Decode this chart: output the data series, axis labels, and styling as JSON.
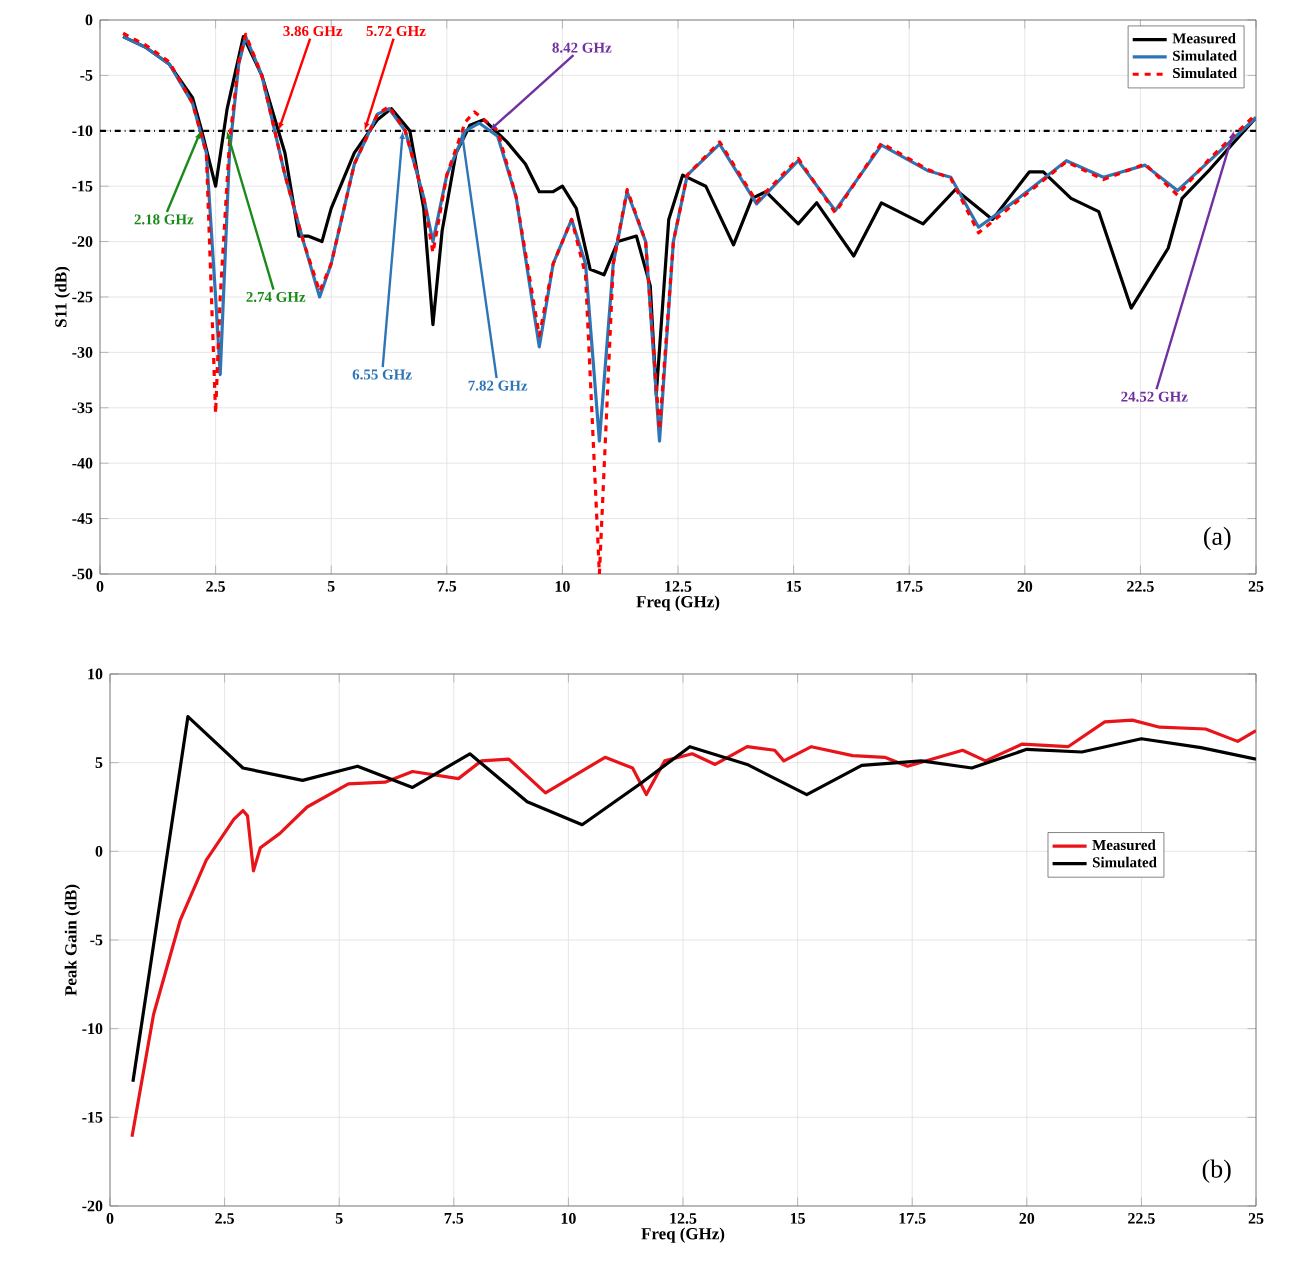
{
  "chart_data": [
    {
      "type": "line",
      "xlabel": "Freq (GHz)",
      "ylabel": "S11 (dB)",
      "xlim": [
        0,
        25
      ],
      "ylim": [
        -50,
        0
      ],
      "xticks": [
        0,
        2.5,
        5,
        7.5,
        10,
        12.5,
        15,
        17.5,
        20,
        22.5,
        25
      ],
      "yticks": [
        -50,
        -45,
        -40,
        -35,
        -30,
        -25,
        -20,
        -15,
        -10,
        -5,
        0
      ],
      "grid": true,
      "legend": "top right",
      "ref_lines": [
        {
          "axis": "y",
          "value": -10,
          "color": "#000000",
          "line_style": "dashdot"
        }
      ],
      "series": [
        {
          "name": "Measured",
          "color": "#000000",
          "line_style": "solid",
          "x": [
            0.5,
            1,
            1.5,
            2,
            2.2,
            2.5,
            2.75,
            3.1,
            3.5,
            4,
            4.3,
            4.5,
            4.8,
            5,
            5.5,
            6,
            6.3,
            6.7,
            7,
            7.2,
            7.4,
            7.7,
            8,
            8.3,
            8.8,
            9.2,
            9.5,
            9.8,
            10,
            10.3,
            10.6,
            10.9,
            11.2,
            11.6,
            11.9,
            12.03,
            12.3,
            12.6,
            13.1,
            13.7,
            14.1,
            14.4,
            15.1,
            15.5,
            16.3,
            16.9,
            17.8,
            18.5,
            19.3,
            20.1,
            20.4,
            21,
            21.6,
            22.3,
            23.1,
            23.4,
            24,
            25
          ],
          "values": [
            -1.5,
            -2.5,
            -4,
            -7,
            -10,
            -15,
            -8,
            -1.5,
            -5,
            -12,
            -19.5,
            -19.5,
            -20,
            -17,
            -12,
            -9,
            -8,
            -10,
            -17,
            -27.5,
            -19,
            -12,
            -9.5,
            -9,
            -11,
            -13,
            -15.5,
            -15.5,
            -15,
            -17,
            -22.5,
            -23,
            -20,
            -19.5,
            -24,
            -33.8,
            -18,
            -14,
            -15,
            -20.3,
            -16.1,
            -15.5,
            -18.4,
            -16.5,
            -21.3,
            -16.5,
            -18.4,
            -15.3,
            -18,
            -13.7,
            -13.7,
            -16.1,
            -17.3,
            -26,
            -20.6,
            -16.1,
            -13.5,
            -8.8
          ]
        },
        {
          "name": "Simulated",
          "color": "#2e75b6",
          "line_style": "solid",
          "x": [
            0.5,
            1,
            1.5,
            2,
            2.3,
            2.5,
            2.6,
            2.8,
            3,
            3.15,
            3.5,
            4,
            4.4,
            4.75,
            5,
            5.5,
            6,
            6.25,
            6.6,
            7,
            7.2,
            7.5,
            7.9,
            8.2,
            8.6,
            9,
            9.5,
            9.8,
            10.2,
            10.5,
            10.8,
            11.1,
            11.4,
            11.8,
            12.1,
            12.4,
            12.7,
            13.4,
            14.2,
            15.1,
            15.9,
            16.9,
            17.9,
            18.4,
            19,
            19.8,
            20.9,
            21.7,
            22.6,
            23.3,
            24,
            25
          ],
          "values": [
            -1.5,
            -2.5,
            -4,
            -7.5,
            -12,
            -25,
            -32,
            -12,
            -4,
            -1.5,
            -5,
            -14,
            -20,
            -25,
            -22,
            -13,
            -8.5,
            -8,
            -10,
            -16,
            -20,
            -14,
            -10,
            -9.3,
            -10.5,
            -16,
            -29.5,
            -22,
            -18,
            -22,
            -38,
            -22,
            -15.5,
            -20,
            -38,
            -20,
            -14,
            -11.2,
            -16.6,
            -12.7,
            -17.2,
            -11.3,
            -13.6,
            -14.2,
            -18.7,
            -16.3,
            -12.7,
            -14.2,
            -13.1,
            -15.4,
            -12.7,
            -8.8
          ]
        },
        {
          "name": "Simulated",
          "color": "#ff0000",
          "line_style": "dashed",
          "x": [
            0.5,
            1,
            1.5,
            2,
            2.3,
            2.5,
            2.6,
            2.8,
            3,
            3.15,
            3.5,
            4,
            4.4,
            4.75,
            5,
            5.5,
            6,
            6.25,
            6.6,
            7,
            7.2,
            7.5,
            7.9,
            8.1,
            8.6,
            9,
            9.5,
            9.8,
            10.2,
            10.5,
            10.8,
            11.1,
            11.4,
            11.8,
            12.1,
            12.4,
            12.7,
            13.4,
            14.2,
            15.1,
            15.9,
            16.9,
            17.9,
            18.4,
            19,
            19.8,
            20.9,
            21.7,
            22.6,
            23.3,
            24,
            25
          ],
          "values": [
            -1.2,
            -2.3,
            -3.8,
            -7.5,
            -12,
            -35.5,
            -25,
            -11,
            -3.8,
            -1.3,
            -5,
            -14,
            -20,
            -24.5,
            -22,
            -13,
            -8.5,
            -7.8,
            -10,
            -16,
            -21,
            -14,
            -9.2,
            -8.3,
            -10,
            -16,
            -28.5,
            -22,
            -18,
            -23,
            -50,
            -22,
            -15.3,
            -20,
            -37,
            -20,
            -14,
            -11,
            -16.4,
            -12.5,
            -17.4,
            -11.1,
            -13.5,
            -14.3,
            -19.2,
            -16.5,
            -12.8,
            -14.4,
            -13,
            -15.8,
            -12.5,
            -8.5
          ]
        }
      ],
      "annotations": [
        {
          "text": "2.18 GHz",
          "x": 2.18,
          "y": -10
        },
        {
          "text": "2.74 GHz",
          "x": 2.74,
          "y": -10
        },
        {
          "text": "3.86 GHz",
          "x": 3.86,
          "y": -10
        },
        {
          "text": "5.72 GHz",
          "x": 5.72,
          "y": -10
        },
        {
          "text": "6.55 GHz",
          "x": 6.55,
          "y": -10
        },
        {
          "text": "7.82 GHz",
          "x": 7.82,
          "y": -10
        },
        {
          "text": "8.42 GHz",
          "x": 8.42,
          "y": -10
        },
        {
          "text": "24.52 GHz",
          "x": 24.52,
          "y": -10
        },
        "(a)"
      ]
    },
    {
      "type": "line",
      "xlabel": "Freq (GHz)",
      "ylabel": "Peak Gain (dB)",
      "xlim": [
        0,
        25
      ],
      "ylim": [
        -20,
        10
      ],
      "xticks": [
        0,
        2.5,
        5,
        7.5,
        10,
        12.5,
        15,
        17.5,
        20,
        22.5,
        25
      ],
      "yticks": [
        -20,
        -15,
        -10,
        -5,
        0,
        5,
        10
      ],
      "grid": true,
      "legend": "right",
      "series": [
        {
          "name": "Measured",
          "color": "#e8141a",
          "line_style": "solid",
          "x": [
            0.48,
            0.95,
            1.53,
            2.1,
            2.7,
            2.9,
            3.0,
            3.13,
            3.28,
            3.7,
            4.3,
            5.2,
            6.0,
            6.6,
            7.6,
            8.1,
            8.7,
            9.5,
            10.8,
            11.4,
            11.7,
            12.1,
            12.7,
            13.2,
            13.9,
            14.5,
            14.7,
            15.3,
            16.2,
            16.9,
            17.4,
            18.6,
            19.1,
            19.9,
            20.9,
            21.7,
            22.3,
            22.9,
            23.9,
            24.6,
            25
          ],
          "values": [
            -16.1,
            -9.2,
            -3.9,
            -0.5,
            1.8,
            2.3,
            2.0,
            -1.1,
            0.2,
            1.0,
            2.5,
            3.8,
            3.9,
            4.5,
            4.1,
            5.1,
            5.2,
            3.3,
            5.3,
            4.7,
            3.2,
            5.1,
            5.5,
            4.9,
            5.9,
            5.7,
            5.1,
            5.9,
            5.4,
            5.3,
            4.8,
            5.7,
            5.1,
            6.05,
            5.9,
            7.3,
            7.4,
            7.0,
            6.9,
            6.2,
            6.8
          ]
        },
        {
          "name": "Simulated",
          "color": "#000000",
          "line_style": "solid",
          "x": [
            0.5,
            1.7,
            2.9,
            4.2,
            5.4,
            6.6,
            7.85,
            9.1,
            10.3,
            11.56,
            12.65,
            13.9,
            15.2,
            16.4,
            17.7,
            18.8,
            20.0,
            21.2,
            22.5,
            23.8,
            25
          ],
          "values": [
            -13,
            7.6,
            4.7,
            4,
            4.8,
            3.6,
            5.5,
            2.8,
            1.5,
            3.8,
            5.9,
            4.9,
            3.2,
            4.85,
            5.1,
            4.7,
            5.75,
            5.6,
            6.35,
            5.85,
            5.2
          ]
        }
      ],
      "annotations": [
        "(b)"
      ]
    }
  ]
}
